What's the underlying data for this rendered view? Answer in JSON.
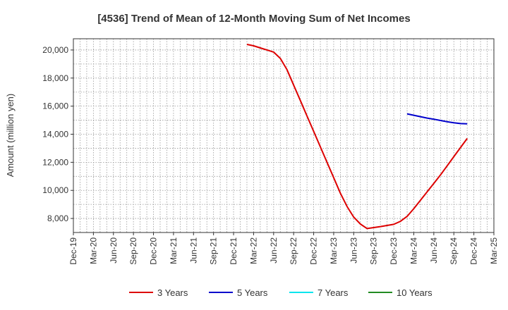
{
  "chart_data": {
    "type": "line",
    "title": "[4536]  Trend of Mean of 12-Month Moving Sum of Net Incomes",
    "ylabel": "Amount (million yen)",
    "xlabel": "",
    "ylim": [
      7000,
      20800
    ],
    "yticks": [
      8000,
      10000,
      12000,
      14000,
      16000,
      18000,
      20000
    ],
    "ytick_labels": [
      "8,000",
      "10,000",
      "12,000",
      "14,000",
      "16,000",
      "18,000",
      "20,000"
    ],
    "categories": [
      "Dec-19",
      "Mar-20",
      "Jun-20",
      "Sep-20",
      "Dec-20",
      "Mar-21",
      "Jun-21",
      "Sep-21",
      "Dec-21",
      "Mar-22",
      "Jun-22",
      "Sep-22",
      "Dec-22",
      "Mar-23",
      "Jun-23",
      "Sep-23",
      "Dec-23",
      "Mar-24",
      "Jun-24",
      "Sep-24",
      "Dec-24",
      "Mar-25"
    ],
    "grid": true,
    "legend_position": "bottom",
    "series": [
      {
        "name": "3 Years",
        "color": "#dd0000",
        "points": [
          [
            "2022-02",
            20400
          ],
          [
            "2022-03",
            20300
          ],
          [
            "2022-04",
            20150
          ],
          [
            "2022-05",
            20000
          ],
          [
            "2022-06",
            19850
          ],
          [
            "2022-07",
            19400
          ],
          [
            "2022-08",
            18600
          ],
          [
            "2022-09",
            17500
          ],
          [
            "2022-10",
            16400
          ],
          [
            "2022-11",
            15300
          ],
          [
            "2022-12",
            14200
          ],
          [
            "2023-01",
            13100
          ],
          [
            "2023-02",
            12000
          ],
          [
            "2023-03",
            10900
          ],
          [
            "2023-04",
            9800
          ],
          [
            "2023-05",
            8850
          ],
          [
            "2023-06",
            8100
          ],
          [
            "2023-07",
            7600
          ],
          [
            "2023-08",
            7280
          ],
          [
            "2023-09",
            7350
          ],
          [
            "2023-10",
            7420
          ],
          [
            "2023-11",
            7500
          ],
          [
            "2023-12",
            7580
          ],
          [
            "2024-01",
            7800
          ],
          [
            "2024-02",
            8150
          ],
          [
            "2024-03",
            8700
          ],
          [
            "2024-04",
            9300
          ],
          [
            "2024-05",
            9900
          ],
          [
            "2024-06",
            10500
          ],
          [
            "2024-07",
            11100
          ],
          [
            "2024-08",
            11750
          ],
          [
            "2024-09",
            12400
          ],
          [
            "2024-10",
            13050
          ],
          [
            "2024-11",
            13700
          ]
        ]
      },
      {
        "name": "5 Years",
        "color": "#0000cc",
        "points": [
          [
            "2024-02",
            15450
          ],
          [
            "2024-03",
            15350
          ],
          [
            "2024-04",
            15250
          ],
          [
            "2024-05",
            15150
          ],
          [
            "2024-06",
            15070
          ],
          [
            "2024-07",
            14980
          ],
          [
            "2024-08",
            14890
          ],
          [
            "2024-09",
            14820
          ],
          [
            "2024-10",
            14760
          ],
          [
            "2024-11",
            14740
          ]
        ]
      },
      {
        "name": "7 Years",
        "color": "#00e5ee",
        "points": []
      },
      {
        "name": "10 Years",
        "color": "#228b22",
        "points": []
      }
    ]
  }
}
